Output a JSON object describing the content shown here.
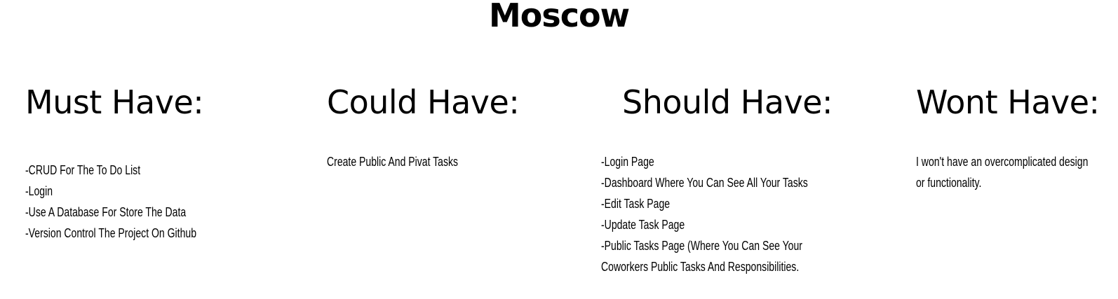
{
  "page": {
    "title": "Moscow"
  },
  "columns": {
    "must": {
      "heading": "Must Have:",
      "items": [
        "-CRUD For The To Do List",
        "-Login",
        "-Use A Database For Store The Data",
        "-Version Control The Project On Github"
      ]
    },
    "could": {
      "heading": "Could Have:",
      "items": [
        "Create Public And Pivat Tasks"
      ]
    },
    "should": {
      "heading": "Should Have:",
      "items": [
        "-Login Page",
        "-Dashboard Where You Can See All Your Tasks",
        "-Edit Task Page",
        "-Update Task Page",
        "-Public Tasks Page (Where You Can See Your",
        "Coworkers Public Tasks And Responsibilities."
      ]
    },
    "wont": {
      "heading": "Wont Have:",
      "items": [
        "I won't have an overcomplicated design",
        "or functionality."
      ]
    }
  }
}
